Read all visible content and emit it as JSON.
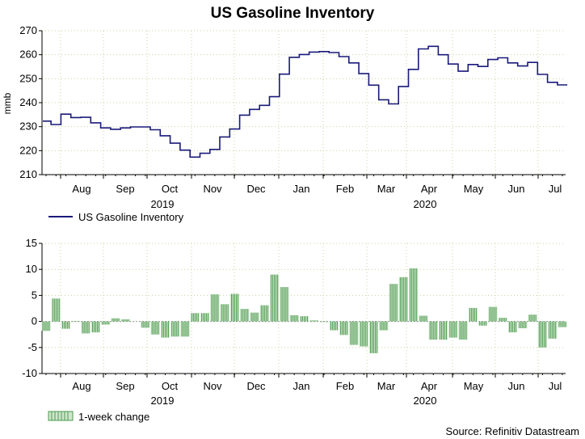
{
  "chart_data": [
    {
      "type": "line",
      "title": "US Gasoline Inventory",
      "ylabel": "mmb",
      "ylim": [
        210,
        270
      ],
      "yticks": [
        "270",
        "260",
        "250",
        "240",
        "230",
        "220",
        "210"
      ],
      "months": [
        "Aug",
        "Sep",
        "Oct",
        "Nov",
        "Dec",
        "Jan",
        "Feb",
        "Mar",
        "Apr",
        "May",
        "Jun",
        "Jul"
      ],
      "years": [
        "2019",
        "2020"
      ],
      "legend": "US Gasoline Inventory",
      "color": "#1a1a7a",
      "week_index_start": 0,
      "series": [
        {
          "name": "US Gasoline Inventory",
          "values": [
            232.3,
            230.9,
            235.2,
            233.8,
            233.9,
            231.6,
            229.5,
            228.9,
            229.5,
            229.9,
            229.9,
            228.7,
            226.2,
            223.1,
            220.2,
            217.3,
            218.9,
            220.5,
            225.7,
            229.0,
            234.8,
            237.2,
            238.9,
            242.5,
            251.9,
            258.9,
            260.1,
            261.1,
            261.3,
            260.9,
            259.2,
            256.6,
            252.1,
            247.3,
            241.2,
            239.5,
            246.7,
            253.9,
            262.4,
            263.5,
            260.0,
            256.1,
            253.1,
            255.9,
            255.1,
            258.0,
            258.7,
            256.6,
            255.3,
            256.8,
            251.8,
            248.5,
            247.4
          ]
        }
      ]
    },
    {
      "type": "bar",
      "title": "",
      "ylim": [
        -10,
        15
      ],
      "yticks": [
        "15",
        "10",
        "5",
        "0",
        "-5",
        "-10"
      ],
      "months": [
        "Aug",
        "Sep",
        "Oct",
        "Nov",
        "Dec",
        "Jan",
        "Feb",
        "Mar",
        "Apr",
        "May",
        "Jun",
        "Jul"
      ],
      "years": [
        "2019",
        "2020"
      ],
      "legend": "1-week change",
      "color": "#4e9a4e",
      "series": [
        {
          "name": "1-week change",
          "values": [
            -1.8,
            4.4,
            -1.4,
            0.1,
            -2.3,
            -2.1,
            -0.6,
            0.6,
            0.4,
            0.0,
            -1.2,
            -2.5,
            -3.1,
            -2.9,
            -2.9,
            1.6,
            1.6,
            5.2,
            3.3,
            5.3,
            2.4,
            1.7,
            3.1,
            9.0,
            6.6,
            1.2,
            1.0,
            0.2,
            -0.1,
            -1.7,
            -2.6,
            -4.5,
            -4.8,
            -6.1,
            -1.7,
            7.2,
            8.5,
            10.2,
            1.1,
            -3.5,
            -3.5,
            -3.1,
            -3.5,
            2.6,
            -0.8,
            2.8,
            0.7,
            -2.1,
            -1.3,
            1.3,
            -5.0,
            -3.3,
            -1.1
          ]
        }
      ]
    }
  ],
  "source": "Source: Refinitiv Datastream"
}
